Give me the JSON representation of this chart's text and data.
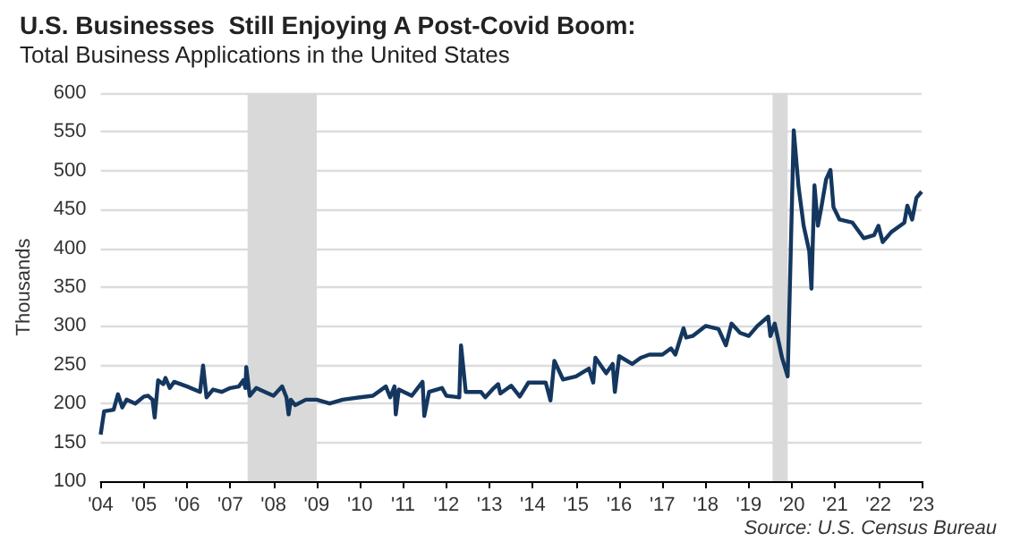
{
  "chart_data": {
    "type": "line",
    "title": "U.S. Businesses  Still Enjoying A Post-Covid Boom:",
    "subtitle": "Total Business Applications in the United States",
    "ylabel": "Thousands",
    "annotations": [
      "Source: U.S. Census Bureau"
    ],
    "series": [
      {
        "color": "#14375f",
        "x": [
          2004.0,
          2004.08,
          2004.3,
          2004.4,
          2004.5,
          2004.6,
          2004.8,
          2005.0,
          2005.1,
          2005.2,
          2005.25,
          2005.33,
          2005.45,
          2005.5,
          2005.6,
          2005.7,
          2006.0,
          2006.3,
          2006.37,
          2006.45,
          2006.6,
          2006.8,
          2007.0,
          2007.2,
          2007.3,
          2007.35,
          2007.37,
          2007.45,
          2007.6,
          2007.8,
          2008.0,
          2008.2,
          2008.3,
          2008.35,
          2008.4,
          2008.5,
          2008.75,
          2009.0,
          2009.3,
          2009.6,
          2010.0,
          2010.3,
          2010.6,
          2010.7,
          2010.8,
          2010.83,
          2010.9,
          2011.2,
          2011.45,
          2011.49,
          2011.6,
          2011.9,
          2012.0,
          2012.3,
          2012.34,
          2012.45,
          2012.8,
          2012.9,
          2013.1,
          2013.2,
          2013.25,
          2013.5,
          2013.7,
          2013.9,
          2014.3,
          2014.41,
          2014.5,
          2014.7,
          2015.0,
          2015.3,
          2015.4,
          2015.45,
          2015.7,
          2015.85,
          2015.9,
          2016.0,
          2016.3,
          2016.5,
          2016.7,
          2017.0,
          2017.2,
          2017.3,
          2017.49,
          2017.55,
          2017.7,
          2018.0,
          2018.3,
          2018.47,
          2018.6,
          2018.8,
          2019.0,
          2019.2,
          2019.45,
          2019.5,
          2019.6,
          2019.77,
          2019.9,
          2020.04,
          2020.15,
          2020.27,
          2020.4,
          2020.45,
          2020.52,
          2020.6,
          2020.68,
          2020.79,
          2020.89,
          2020.96,
          2021.1,
          2021.4,
          2021.66,
          2021.9,
          2022.0,
          2022.1,
          2022.3,
          2022.6,
          2022.67,
          2022.78,
          2022.88,
          2023.0
        ],
        "values": [
          160,
          190,
          192,
          212,
          195,
          205,
          200,
          209,
          210,
          205,
          182,
          230,
          225,
          233,
          220,
          228,
          222,
          215,
          249,
          208,
          218,
          215,
          220,
          222,
          230,
          220,
          247,
          210,
          220,
          215,
          210,
          222,
          208,
          186,
          205,
          198,
          205,
          205,
          200,
          205,
          208,
          210,
          222,
          208,
          222,
          186,
          218,
          210,
          228,
          184,
          215,
          220,
          210,
          208,
          275,
          215,
          215,
          208,
          220,
          225,
          213,
          223,
          209,
          227,
          227,
          204,
          255,
          231,
          235,
          245,
          227,
          259,
          239,
          251,
          215,
          261,
          251,
          259,
          263,
          263,
          271,
          263,
          297,
          285,
          287,
          300,
          296,
          275,
          303,
          291,
          287,
          300,
          312,
          287,
          303,
          259,
          235,
          552,
          480,
          429,
          396,
          348,
          481,
          429,
          453,
          489,
          501,
          453,
          437,
          433,
          413,
          417,
          429,
          408,
          421,
          433,
          455,
          437,
          465,
          473
        ]
      }
    ],
    "xlim": [
      2004,
      2023
    ],
    "xticks": [
      {
        "value": 2004,
        "label": "'04"
      },
      {
        "value": 2005,
        "label": "'05"
      },
      {
        "value": 2006,
        "label": "'06"
      },
      {
        "value": 2007,
        "label": "'07"
      },
      {
        "value": 2008,
        "label": "'08"
      },
      {
        "value": 2009,
        "label": "'09"
      },
      {
        "value": 2010,
        "label": "'10"
      },
      {
        "value": 2011,
        "label": "'11"
      },
      {
        "value": 2012,
        "label": "'12"
      },
      {
        "value": 2013,
        "label": "'13"
      },
      {
        "value": 2014,
        "label": "'14"
      },
      {
        "value": 2015,
        "label": "'15"
      },
      {
        "value": 2016,
        "label": "'16"
      },
      {
        "value": 2017,
        "label": "'17"
      },
      {
        "value": 2018,
        "label": "'18"
      },
      {
        "value": 2019,
        "label": "'19"
      },
      {
        "value": 2020,
        "label": "'20"
      },
      {
        "value": 2021,
        "label": "'21"
      },
      {
        "value": 2022,
        "label": "'22"
      },
      {
        "value": 2023,
        "label": "'23"
      }
    ],
    "ylim": [
      100,
      600
    ],
    "yticks": [
      100,
      150,
      200,
      250,
      300,
      350,
      400,
      450,
      500,
      550,
      600
    ],
    "bands": [
      {
        "axis": "x",
        "from": 2007.4,
        "to": 2009.0,
        "color": "#d9d9d9"
      },
      {
        "axis": "x",
        "from": 2019.55,
        "to": 2019.9,
        "color": "#d9d9d9"
      }
    ],
    "grid": "y",
    "marker": "none",
    "line_style": "solid"
  }
}
